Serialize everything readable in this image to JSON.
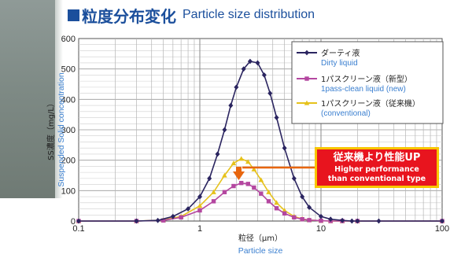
{
  "title": {
    "jp": "粒度分布変化",
    "en": "Particle size distribution"
  },
  "callout": {
    "jp": "従来機より性能UP",
    "en_line1": "Higher performance",
    "en_line2": "than conventional type"
  },
  "colors": {
    "dirty": "#2b2560",
    "new": "#b447a0",
    "conventional": "#e6c21c",
    "title": "#1b4f9c",
    "english_text": "#3a7fd0",
    "callout_bg": "#e8141e",
    "callout_border": "#f7c600"
  },
  "chart_data": {
    "type": "line",
    "xscale": "log",
    "xlim": [
      0.1,
      100
    ],
    "ylim": [
      0,
      600
    ],
    "x_ticks": [
      "0.1",
      "1",
      "10",
      "100"
    ],
    "y_ticks": [
      "0",
      "100",
      "200",
      "300",
      "400",
      "500",
      "600"
    ],
    "xlabel_jp": "粒径（μm）",
    "xlabel_en": "Particle size",
    "ylabel_jp": "SS濃度（mg/L）",
    "ylabel_en": "Suspended Solid concentration",
    "grid": true,
    "legend_position": "top-right",
    "series": [
      {
        "name_jp": "ダーティ液",
        "name_en": "Dirty liquid",
        "marker": "diamond",
        "x": [
          0.1,
          0.3,
          0.45,
          0.6,
          0.8,
          1.0,
          1.2,
          1.4,
          1.6,
          1.8,
          2.0,
          2.3,
          2.6,
          3.0,
          3.4,
          3.8,
          4.3,
          5.0,
          6.0,
          7.0,
          8.0,
          10.0,
          12.0,
          15.0,
          18.0,
          20.0,
          30.0,
          100.0
        ],
        "y": [
          0,
          0,
          2,
          15,
          40,
          80,
          140,
          220,
          300,
          380,
          440,
          500,
          525,
          520,
          480,
          420,
          340,
          240,
          140,
          80,
          45,
          15,
          6,
          2,
          0,
          0,
          0,
          0
        ]
      },
      {
        "name_jp": "1パスクリーン液（新型）",
        "name_en": "1pass-clean liquid (new)",
        "marker": "square",
        "x": [
          0.1,
          0.3,
          0.5,
          0.7,
          1.0,
          1.3,
          1.6,
          1.9,
          2.2,
          2.5,
          2.8,
          3.2,
          3.7,
          4.3,
          5.0,
          6.0,
          7.0,
          8.0,
          10.0,
          12.0,
          15.0,
          20.0,
          100.0
        ],
        "y": [
          0,
          0,
          2,
          12,
          35,
          65,
          95,
          115,
          125,
          122,
          110,
          90,
          65,
          42,
          25,
          12,
          6,
          3,
          1,
          0,
          0,
          0,
          0
        ]
      },
      {
        "name_jp": "1パスクリーン液（従来機）",
        "name_en": "(conventional)",
        "marker": "triangle",
        "x": [
          0.1,
          0.3,
          0.5,
          0.7,
          1.0,
          1.3,
          1.6,
          1.9,
          2.2,
          2.5,
          2.8,
          3.2,
          3.7,
          4.3,
          5.0,
          6.0,
          7.0,
          8.0,
          10.0,
          12.0,
          15.0,
          20.0,
          100.0
        ],
        "y": [
          0,
          0,
          3,
          15,
          50,
          95,
          150,
          190,
          205,
          195,
          170,
          135,
          95,
          60,
          35,
          15,
          7,
          3,
          1,
          0,
          0,
          0,
          0
        ]
      }
    ]
  }
}
